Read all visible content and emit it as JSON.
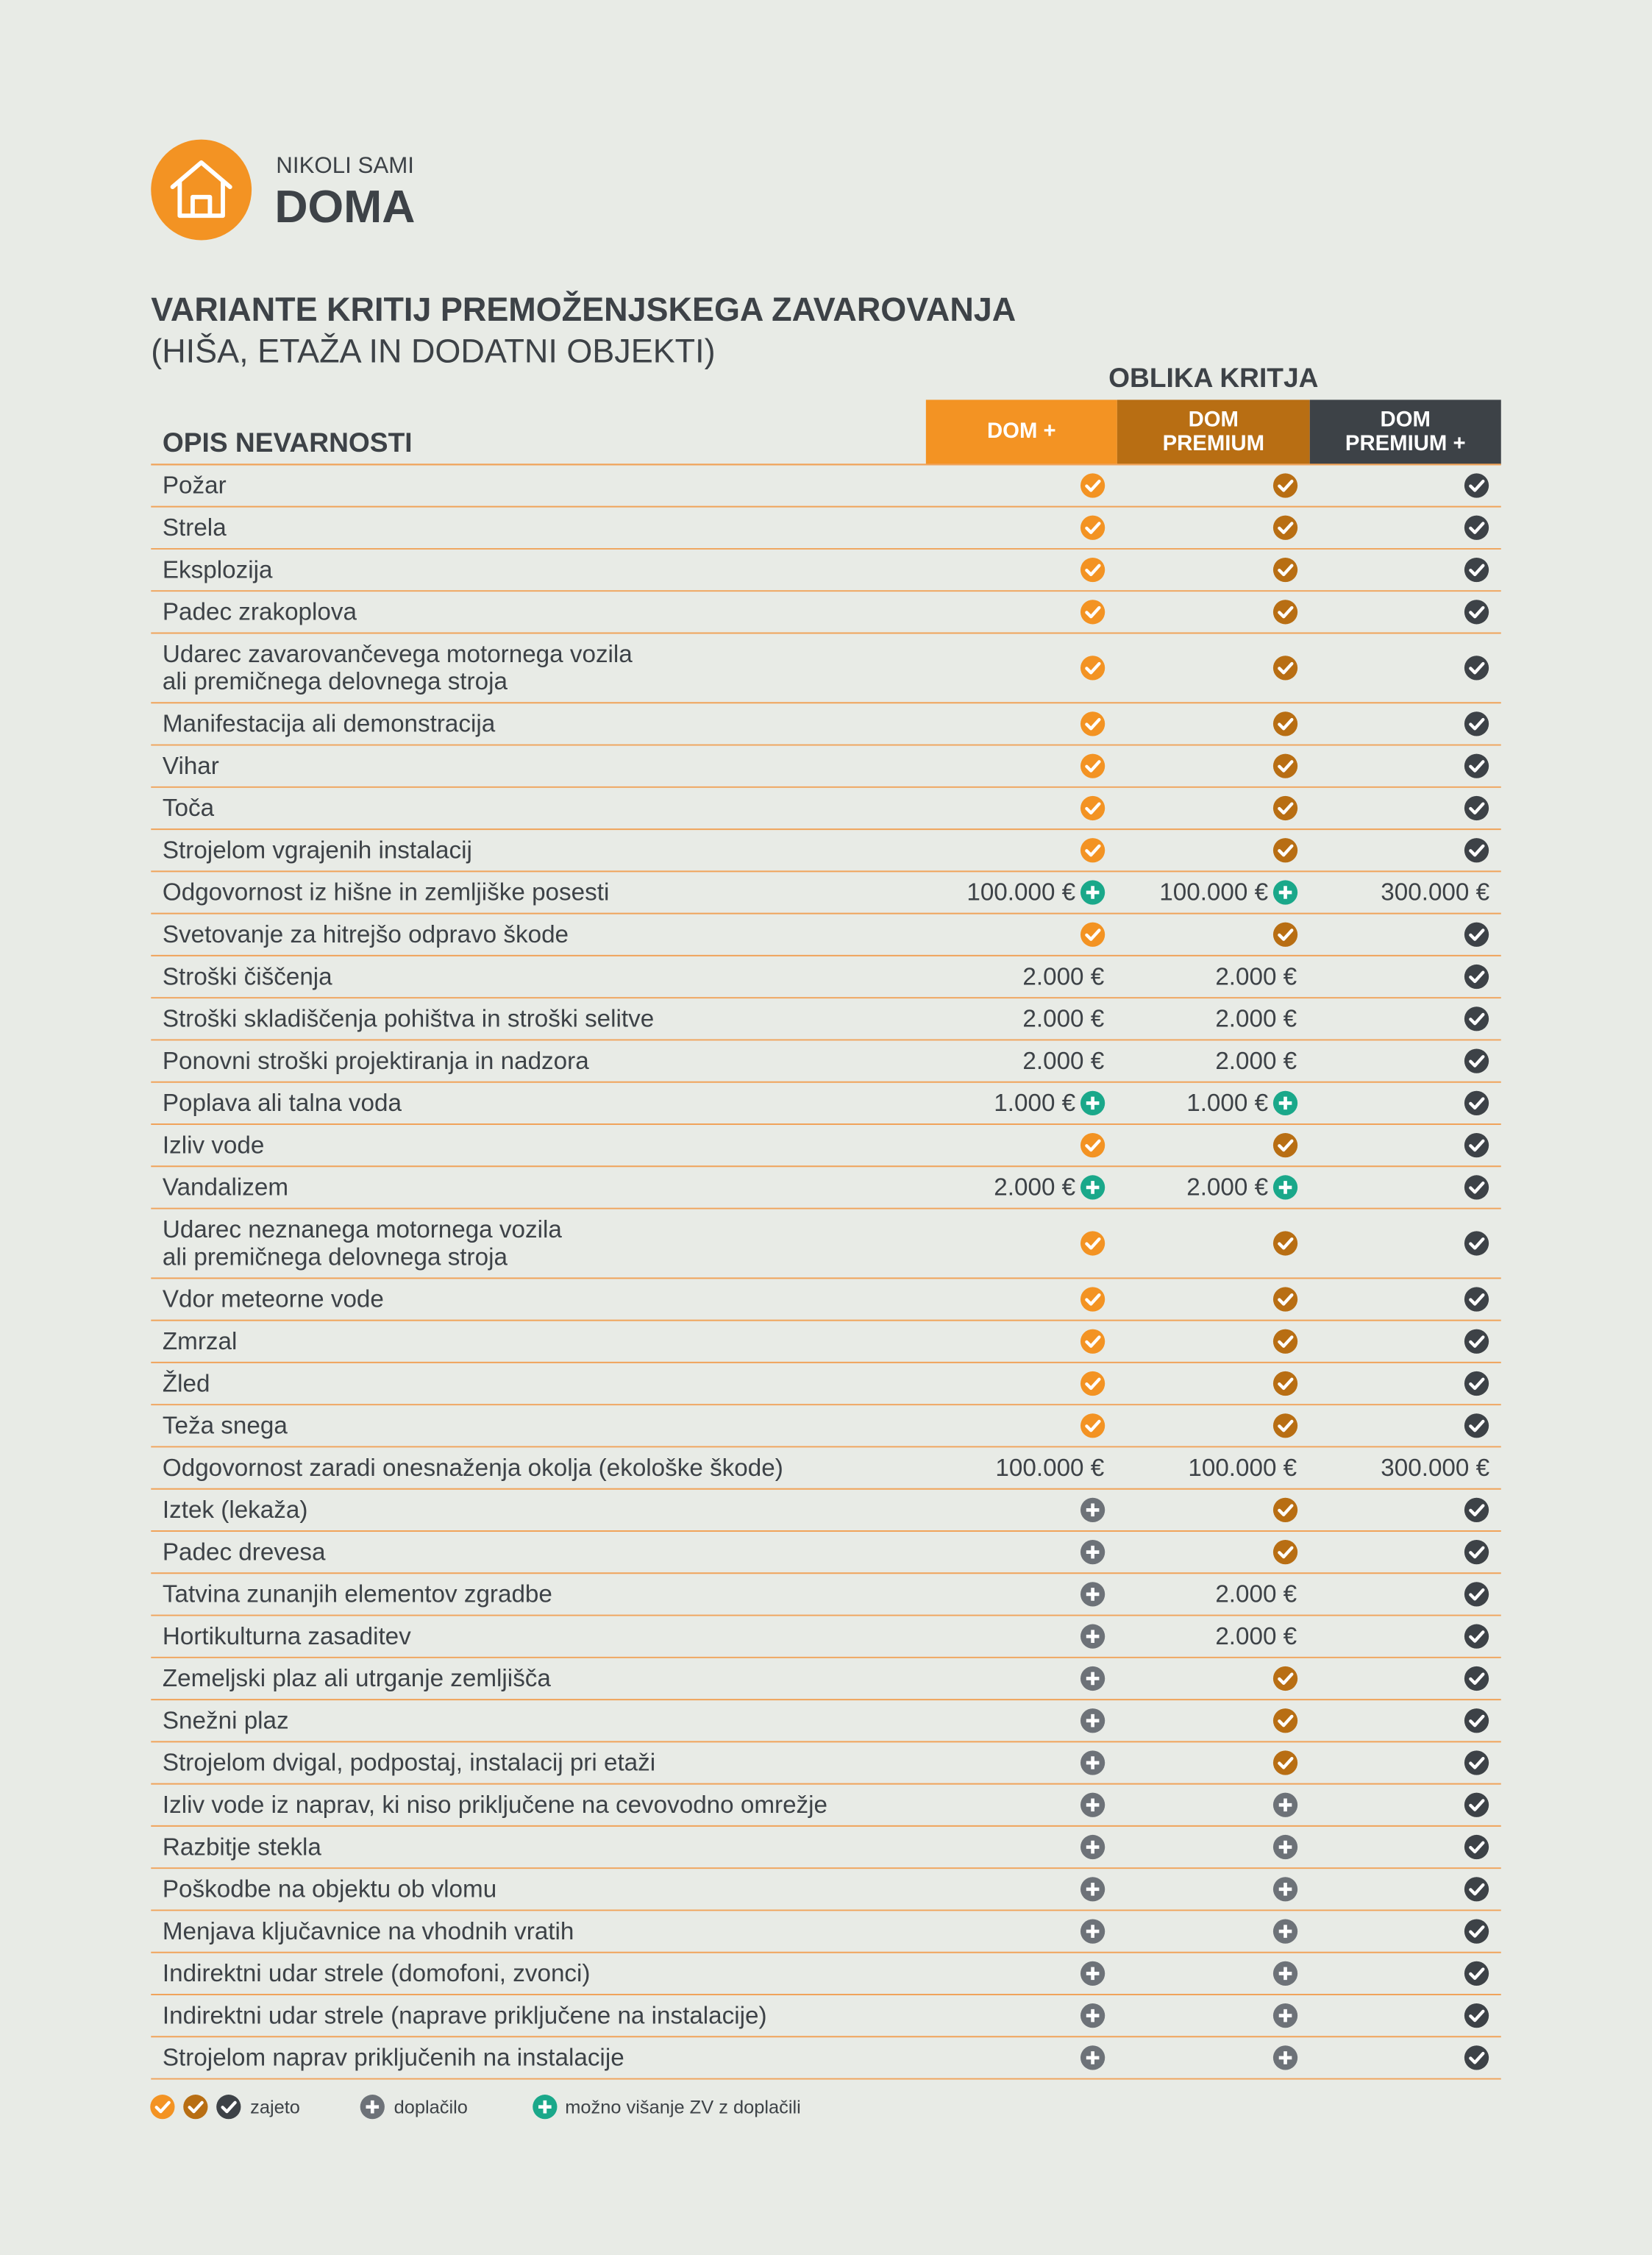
{
  "header": {
    "brand_small": "NIKOLI SAMI",
    "brand_big": "DOMA",
    "color": "#f39323"
  },
  "title": {
    "line1": "VARIANTE KRITIJ PREMOŽENJSKEGA ZAVAROVANJA",
    "line2": "(HIŠA, ETAŽA IN DODATNI OBJEKTI)"
  },
  "table": {
    "group_header": "OBLIKA KRITJA",
    "first_header": "OPIS NEVARNOSTI",
    "columns": [
      {
        "lines": [
          "DOM +"
        ],
        "color": "#f39323"
      },
      {
        "lines": [
          "DOM",
          "PREMIUM"
        ],
        "color": "#b86e13"
      },
      {
        "lines": [
          "DOM",
          "PREMIUM +"
        ],
        "color": "#3d4247"
      }
    ],
    "rows": [
      {
        "label": [
          "Požar"
        ],
        "cells": [
          {
            "icon": "covered"
          },
          {
            "icon": "covered"
          },
          {
            "icon": "covered"
          }
        ]
      },
      {
        "label": [
          "Strela"
        ],
        "cells": [
          {
            "icon": "covered"
          },
          {
            "icon": "covered"
          },
          {
            "icon": "covered"
          }
        ]
      },
      {
        "label": [
          "Eksplozija"
        ],
        "cells": [
          {
            "icon": "covered"
          },
          {
            "icon": "covered"
          },
          {
            "icon": "covered"
          }
        ]
      },
      {
        "label": [
          "Padec zrakoplova"
        ],
        "cells": [
          {
            "icon": "covered"
          },
          {
            "icon": "covered"
          },
          {
            "icon": "covered"
          }
        ]
      },
      {
        "label": [
          "Udarec zavarovančevega motornega vozila",
          "ali premičnega delovnega stroja"
        ],
        "cells": [
          {
            "icon": "covered"
          },
          {
            "icon": "covered"
          },
          {
            "icon": "covered"
          }
        ]
      },
      {
        "label": [
          "Manifestacija ali demonstracija"
        ],
        "cells": [
          {
            "icon": "covered"
          },
          {
            "icon": "covered"
          },
          {
            "icon": "covered"
          }
        ]
      },
      {
        "label": [
          "Vihar"
        ],
        "cells": [
          {
            "icon": "covered"
          },
          {
            "icon": "covered"
          },
          {
            "icon": "covered"
          }
        ]
      },
      {
        "label": [
          "Toča"
        ],
        "cells": [
          {
            "icon": "covered"
          },
          {
            "icon": "covered"
          },
          {
            "icon": "covered"
          }
        ]
      },
      {
        "label": [
          "Strojelom vgrajenih instalacij"
        ],
        "cells": [
          {
            "icon": "covered"
          },
          {
            "icon": "covered"
          },
          {
            "icon": "covered"
          }
        ]
      },
      {
        "label": [
          "Odgovornost iz hišne in zemljiške posesti"
        ],
        "cells": [
          {
            "text": "100.000 €",
            "icon": "increase"
          },
          {
            "text": "100.000 €",
            "icon": "increase"
          },
          {
            "text": "300.000 €"
          }
        ]
      },
      {
        "label": [
          "Svetovanje za hitrejšo odpravo škode"
        ],
        "cells": [
          {
            "icon": "covered"
          },
          {
            "icon": "covered"
          },
          {
            "icon": "covered"
          }
        ]
      },
      {
        "label": [
          "Stroški čiščenja"
        ],
        "cells": [
          {
            "text": "2.000 €"
          },
          {
            "text": "2.000 €"
          },
          {
            "icon": "covered"
          }
        ]
      },
      {
        "label": [
          "Stroški skladiščenja pohištva in stroški selitve"
        ],
        "cells": [
          {
            "text": "2.000 €"
          },
          {
            "text": "2.000 €"
          },
          {
            "icon": "covered"
          }
        ]
      },
      {
        "label": [
          "Ponovni stroški projektiranja in nadzora"
        ],
        "cells": [
          {
            "text": "2.000 €"
          },
          {
            "text": "2.000 €"
          },
          {
            "icon": "covered"
          }
        ]
      },
      {
        "label": [
          "Poplava ali talna voda"
        ],
        "cells": [
          {
            "text": "1.000 €",
            "icon": "increase"
          },
          {
            "text": "1.000 €",
            "icon": "increase"
          },
          {
            "icon": "covered"
          }
        ]
      },
      {
        "label": [
          "Izliv vode"
        ],
        "cells": [
          {
            "icon": "covered"
          },
          {
            "icon": "covered"
          },
          {
            "icon": "covered"
          }
        ]
      },
      {
        "label": [
          "Vandalizem"
        ],
        "cells": [
          {
            "text": "2.000 €",
            "icon": "increase"
          },
          {
            "text": "2.000 €",
            "icon": "increase"
          },
          {
            "icon": "covered"
          }
        ]
      },
      {
        "label": [
          "Udarec neznanega motornega vozila",
          "ali premičnega delovnega stroja"
        ],
        "cells": [
          {
            "icon": "covered"
          },
          {
            "icon": "covered"
          },
          {
            "icon": "covered"
          }
        ]
      },
      {
        "label": [
          "Vdor meteorne vode"
        ],
        "cells": [
          {
            "icon": "covered"
          },
          {
            "icon": "covered"
          },
          {
            "icon": "covered"
          }
        ]
      },
      {
        "label": [
          "Zmrzal"
        ],
        "cells": [
          {
            "icon": "covered"
          },
          {
            "icon": "covered"
          },
          {
            "icon": "covered"
          }
        ]
      },
      {
        "label": [
          "Žled"
        ],
        "cells": [
          {
            "icon": "covered"
          },
          {
            "icon": "covered"
          },
          {
            "icon": "covered"
          }
        ]
      },
      {
        "label": [
          "Teža snega"
        ],
        "cells": [
          {
            "icon": "covered"
          },
          {
            "icon": "covered"
          },
          {
            "icon": "covered"
          }
        ]
      },
      {
        "label": [
          "Odgovornost zaradi onesnaženja okolja (ekološke škode)"
        ],
        "cells": [
          {
            "text": "100.000 €"
          },
          {
            "text": "100.000 €"
          },
          {
            "text": "300.000 €"
          }
        ]
      },
      {
        "label": [
          "Iztek (lekaža)"
        ],
        "cells": [
          {
            "icon": "surcharge"
          },
          {
            "icon": "covered"
          },
          {
            "icon": "covered"
          }
        ]
      },
      {
        "label": [
          "Padec drevesa"
        ],
        "cells": [
          {
            "icon": "surcharge"
          },
          {
            "icon": "covered"
          },
          {
            "icon": "covered"
          }
        ]
      },
      {
        "label": [
          "Tatvina zunanjih elementov zgradbe"
        ],
        "cells": [
          {
            "icon": "surcharge"
          },
          {
            "text": "2.000 €"
          },
          {
            "icon": "covered"
          }
        ]
      },
      {
        "label": [
          "Hortikulturna zasaditev"
        ],
        "cells": [
          {
            "icon": "surcharge"
          },
          {
            "text": "2.000 €"
          },
          {
            "icon": "covered"
          }
        ]
      },
      {
        "label": [
          "Zemeljski plaz ali utrganje zemljišča"
        ],
        "cells": [
          {
            "icon": "surcharge"
          },
          {
            "icon": "covered"
          },
          {
            "icon": "covered"
          }
        ]
      },
      {
        "label": [
          "Snežni plaz"
        ],
        "cells": [
          {
            "icon": "surcharge"
          },
          {
            "icon": "covered"
          },
          {
            "icon": "covered"
          }
        ]
      },
      {
        "label": [
          "Strojelom dvigal, podpostaj, instalacij pri etaži"
        ],
        "cells": [
          {
            "icon": "surcharge"
          },
          {
            "icon": "covered"
          },
          {
            "icon": "covered"
          }
        ]
      },
      {
        "label": [
          "Izliv vode iz naprav, ki niso priključene na cevovodno omrežje"
        ],
        "cells": [
          {
            "icon": "surcharge"
          },
          {
            "icon": "surcharge"
          },
          {
            "icon": "covered"
          }
        ]
      },
      {
        "label": [
          "Razbitje stekla"
        ],
        "cells": [
          {
            "icon": "surcharge"
          },
          {
            "icon": "surcharge"
          },
          {
            "icon": "covered"
          }
        ]
      },
      {
        "label": [
          "Poškodbe na objektu ob vlomu"
        ],
        "cells": [
          {
            "icon": "surcharge"
          },
          {
            "icon": "surcharge"
          },
          {
            "icon": "covered"
          }
        ]
      },
      {
        "label": [
          "Menjava ključavnice na vhodnih vratih"
        ],
        "cells": [
          {
            "icon": "surcharge"
          },
          {
            "icon": "surcharge"
          },
          {
            "icon": "covered"
          }
        ]
      },
      {
        "label": [
          "Indirektni udar strele (domofoni, zvonci)"
        ],
        "cells": [
          {
            "icon": "surcharge"
          },
          {
            "icon": "surcharge"
          },
          {
            "icon": "covered"
          }
        ]
      },
      {
        "label": [
          "Indirektni udar strele (naprave priključene na instalacije)"
        ],
        "cells": [
          {
            "icon": "surcharge"
          },
          {
            "icon": "surcharge"
          },
          {
            "icon": "covered"
          }
        ]
      },
      {
        "label": [
          "Strojelom naprav priključenih na instalacije"
        ],
        "cells": [
          {
            "icon": "surcharge"
          },
          {
            "icon": "surcharge"
          },
          {
            "icon": "covered"
          }
        ]
      }
    ]
  },
  "legend": {
    "covered": "zajeto",
    "surcharge": "doplačilo",
    "increase": "možno višanje ZV z doplačili",
    "surcharge_color": "#6d7278",
    "increase_color": "#1aa88a",
    "line_color": "#f0a35a"
  }
}
